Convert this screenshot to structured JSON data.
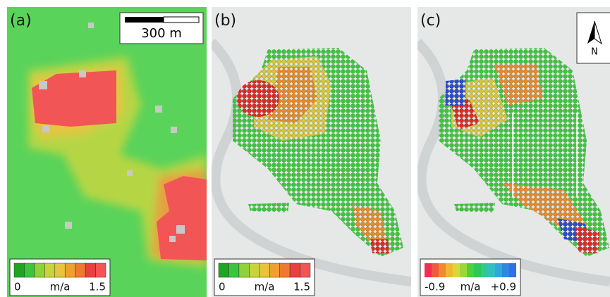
{
  "panels": [
    {
      "label": "(a)",
      "colorbar": {
        "min_label": "0",
        "unit": "m/a",
        "max_label": "1.5"
      }
    },
    {
      "label": "(b)",
      "colorbar": {
        "min_label": "0",
        "unit": "m/a",
        "max_label": "1.5"
      }
    },
    {
      "label": "(c)",
      "colorbar": {
        "min_label": "-0.9",
        "unit": "m/a",
        "max_label": "+0.9"
      }
    }
  ],
  "scale_bar": "300 m",
  "north_arrow": "N"
}
